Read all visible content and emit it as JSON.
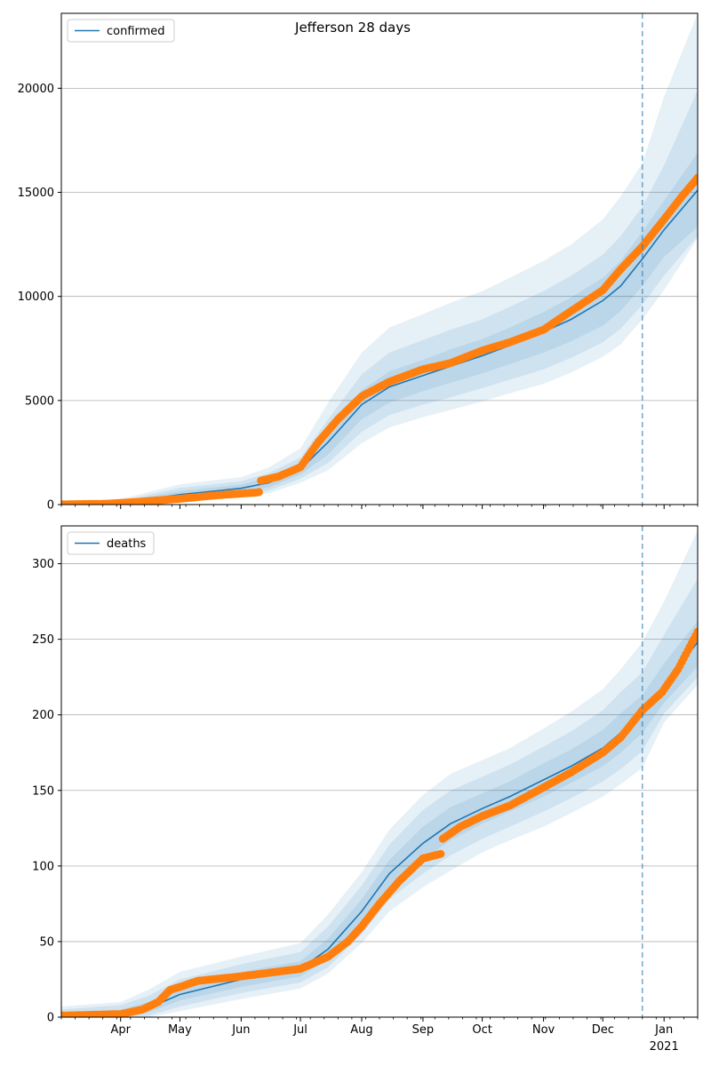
{
  "figure": {
    "title": "Jefferson 28 days",
    "colors": {
      "model": "#1f77b4",
      "observed": "#ff7f0e",
      "band": "#1f77b4",
      "grid": "#b0b0b0"
    }
  },
  "chart_data": [
    {
      "type": "line",
      "name": "confirmed-panel",
      "legend": "confirmed",
      "legend_position": "top-left",
      "grid": "y",
      "xlim": [
        "2020-03-02",
        "2021-01-18"
      ],
      "ylim": [
        0,
        23600
      ],
      "yticks": [
        0,
        5000,
        10000,
        15000,
        20000
      ],
      "xticks": [
        {
          "date": "2020-04-01",
          "label": "Apr"
        },
        {
          "date": "2020-05-01",
          "label": "May"
        },
        {
          "date": "2020-06-01",
          "label": "Jun"
        },
        {
          "date": "2020-07-01",
          "label": "Jul"
        },
        {
          "date": "2020-08-01",
          "label": "Aug"
        },
        {
          "date": "2020-09-01",
          "label": "Sep"
        },
        {
          "date": "2020-10-01",
          "label": "Oct"
        },
        {
          "date": "2020-11-01",
          "label": "Nov"
        },
        {
          "date": "2020-12-01",
          "label": "Dec"
        },
        {
          "date": "2021-01-01",
          "label": "Jan",
          "sublabel": "2021"
        }
      ],
      "show_xtick_labels": false,
      "forecast_start": "2020-12-21",
      "model": {
        "x": [
          "2020-03-02",
          "2020-04-01",
          "2020-05-01",
          "2020-06-01",
          "2020-06-15",
          "2020-07-01",
          "2020-07-15",
          "2020-08-01",
          "2020-08-15",
          "2020-09-01",
          "2020-09-15",
          "2020-10-01",
          "2020-10-15",
          "2020-11-01",
          "2020-11-15",
          "2020-12-01",
          "2020-12-10",
          "2020-12-21",
          "2021-01-01",
          "2021-01-18"
        ],
        "y": [
          10,
          60,
          480,
          780,
          1050,
          1700,
          3000,
          4800,
          5650,
          6200,
          6650,
          7150,
          7650,
          8300,
          8900,
          9800,
          10500,
          11800,
          13200,
          15100
        ],
        "bands": [
          {
            "lower": [
              0,
              0,
              330,
              600,
              830,
              1450,
              2400,
              4100,
              4900,
              5450,
              5850,
              6300,
              6750,
              7300,
              7850,
              8600,
              9300,
              10500,
              11900,
              13350
            ],
            "upper": [
              30,
              110,
              650,
              960,
              1300,
              1950,
              3500,
              5500,
              6400,
              6950,
              7450,
              7950,
              8500,
              9250,
              9950,
              10900,
              11700,
              13100,
              14600,
              16900
            ]
          },
          {
            "lower": [
              0,
              0,
              220,
              460,
              680,
              1250,
              2000,
              3500,
              4300,
              4800,
              5150,
              5600,
              6000,
              6500,
              7050,
              7800,
              8450,
              9600,
              11000,
              12900
            ],
            "upper": [
              70,
              180,
              800,
              1120,
              1520,
              2250,
              4100,
              6250,
              7300,
              7900,
              8400,
              8900,
              9500,
              10250,
              11000,
              12000,
              12900,
              14300,
              16300,
              19900
            ]
          },
          {
            "lower": [
              0,
              0,
              120,
              350,
              540,
              1050,
              1650,
              2950,
              3700,
              4200,
              4550,
              4950,
              5350,
              5800,
              6350,
              7100,
              7700,
              8900,
              10300,
              12800
            ],
            "upper": [
              120,
              260,
              970,
              1320,
              1780,
              2700,
              4900,
              7300,
              8500,
              9150,
              9700,
              10250,
              10900,
              11700,
              12500,
              13700,
              14800,
              16400,
              19600,
              23600
            ]
          }
        ]
      },
      "observed": {
        "start": "2020-03-02",
        "anchors": [
          [
            "2020-03-02",
            10
          ],
          [
            "2020-03-25",
            40
          ],
          [
            "2020-04-10",
            130
          ],
          [
            "2020-05-01",
            280
          ],
          [
            "2020-05-20",
            450
          ],
          [
            "2020-06-09",
            580
          ],
          [
            "2020-06-10",
            600
          ],
          [
            "2020-06-11",
            1150
          ],
          [
            "2020-06-20",
            1350
          ],
          [
            "2020-07-01",
            1800
          ],
          [
            "2020-07-10",
            3000
          ],
          [
            "2020-07-20",
            4100
          ],
          [
            "2020-08-01",
            5200
          ],
          [
            "2020-08-15",
            5900
          ],
          [
            "2020-09-01",
            6500
          ],
          [
            "2020-09-15",
            6800
          ],
          [
            "2020-10-01",
            7400
          ],
          [
            "2020-10-15",
            7800
          ],
          [
            "2020-11-01",
            8400
          ],
          [
            "2020-11-15",
            9300
          ],
          [
            "2020-12-01",
            10300
          ],
          [
            "2020-12-10",
            11300
          ],
          [
            "2020-12-21",
            12400
          ],
          [
            "2021-01-01",
            13700
          ],
          [
            "2021-01-10",
            14800
          ],
          [
            "2021-01-18",
            15700
          ]
        ]
      }
    },
    {
      "type": "line",
      "name": "deaths-panel",
      "legend": "deaths",
      "legend_position": "top-left",
      "grid": "y",
      "xlim": [
        "2020-03-02",
        "2021-01-18"
      ],
      "ylim": [
        0,
        325
      ],
      "yticks": [
        0,
        50,
        100,
        150,
        200,
        250,
        300
      ],
      "xticks": [
        {
          "date": "2020-04-01",
          "label": "Apr"
        },
        {
          "date": "2020-05-01",
          "label": "May"
        },
        {
          "date": "2020-06-01",
          "label": "Jun"
        },
        {
          "date": "2020-07-01",
          "label": "Jul"
        },
        {
          "date": "2020-08-01",
          "label": "Aug"
        },
        {
          "date": "2020-09-01",
          "label": "Sep"
        },
        {
          "date": "2020-10-01",
          "label": "Oct"
        },
        {
          "date": "2020-11-01",
          "label": "Nov"
        },
        {
          "date": "2020-12-01",
          "label": "Dec"
        },
        {
          "date": "2021-01-01",
          "label": "Jan",
          "sublabel": "2021"
        }
      ],
      "show_xtick_labels": true,
      "forecast_start": "2020-12-21",
      "model": {
        "x": [
          "2020-03-02",
          "2020-04-01",
          "2020-04-15",
          "2020-05-01",
          "2020-06-01",
          "2020-07-01",
          "2020-07-15",
          "2020-08-01",
          "2020-08-15",
          "2020-09-01",
          "2020-09-15",
          "2020-10-01",
          "2020-10-15",
          "2020-11-01",
          "2020-11-15",
          "2020-12-01",
          "2020-12-10",
          "2020-12-21",
          "2021-01-01",
          "2021-01-18"
        ],
        "y": [
          1,
          2,
          6,
          15,
          25,
          32,
          45,
          70,
          95,
          115,
          128,
          138,
          146,
          157,
          166,
          178,
          188,
          200,
          220,
          248
        ],
        "bands": [
          {
            "lower": [
              0,
              0,
              3,
              11,
              20,
              27,
              38,
              62,
              86,
              104,
              117,
              128,
              136,
              146,
              155,
              166,
              175,
              188,
              208,
              232
            ],
            "upper": [
              3,
              5,
              10,
              20,
              30,
              37,
              52,
              78,
              104,
              126,
              139,
              148,
              156,
              168,
              177,
              190,
              201,
              213,
              234,
              262
            ]
          },
          {
            "lower": [
              0,
              0,
              1,
              7,
              16,
              23,
              33,
              55,
              78,
              95,
              107,
              118,
              126,
              136,
              145,
              156,
              164,
              176,
              201,
              225
            ],
            "upper": [
              5,
              8,
              14,
              25,
              35,
              43,
              60,
              87,
              114,
              137,
              150,
              159,
              167,
              179,
              189,
              203,
              215,
              228,
              253,
              290
            ]
          },
          {
            "lower": [
              0,
              0,
              0,
              4,
              12,
              19,
              29,
              49,
              70,
              86,
              97,
              109,
              117,
              126,
              135,
              146,
              154,
              165,
              195,
              220
            ],
            "upper": [
              7,
              10,
              18,
              30,
              40,
              49,
              68,
              96,
              124,
              147,
              161,
              170,
              178,
              191,
              202,
              217,
              230,
              248,
              275,
              322
            ]
          }
        ]
      },
      "observed": {
        "start": "2020-03-02",
        "anchors": [
          [
            "2020-03-02",
            1
          ],
          [
            "2020-04-01",
            2
          ],
          [
            "2020-04-12",
            5
          ],
          [
            "2020-04-20",
            10
          ],
          [
            "2020-04-26",
            18
          ],
          [
            "2020-05-01",
            20
          ],
          [
            "2020-05-10",
            24
          ],
          [
            "2020-06-01",
            27
          ],
          [
            "2020-07-01",
            32
          ],
          [
            "2020-07-15",
            40
          ],
          [
            "2020-07-25",
            50
          ],
          [
            "2020-08-01",
            60
          ],
          [
            "2020-08-10",
            75
          ],
          [
            "2020-08-20",
            90
          ],
          [
            "2020-09-01",
            105
          ],
          [
            "2020-09-10",
            108
          ],
          [
            "2020-09-11",
            118
          ],
          [
            "2020-09-20",
            126
          ],
          [
            "2020-10-01",
            133
          ],
          [
            "2020-10-15",
            140
          ],
          [
            "2020-11-01",
            152
          ],
          [
            "2020-11-15",
            162
          ],
          [
            "2020-12-01",
            175
          ],
          [
            "2020-12-10",
            185
          ],
          [
            "2020-12-21",
            203
          ],
          [
            "2020-12-31",
            215
          ],
          [
            "2021-01-08",
            230
          ],
          [
            "2021-01-18",
            255
          ]
        ]
      }
    }
  ]
}
